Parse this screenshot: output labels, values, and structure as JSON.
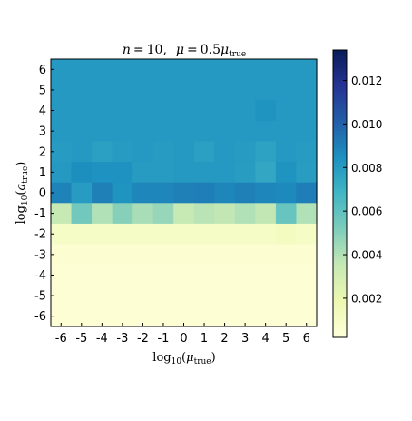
{
  "chart_data": {
    "type": "heatmap",
    "title": {
      "n_var": "n",
      "n_value": "10",
      "mu_var": "μ",
      "mu_factor": "0.5",
      "mu_sub": "true"
    },
    "xlabel": {
      "prefix": "log",
      "base": "10",
      "var": "μ",
      "sub": "true"
    },
    "ylabel": {
      "prefix": "log",
      "base": "10",
      "var": "a",
      "sub": "true"
    },
    "x_ticks": [
      "-6",
      "-5",
      "-4",
      "-3",
      "-2",
      "-1",
      "0",
      "1",
      "2",
      "3",
      "4",
      "5",
      "6"
    ],
    "y_ticks": [
      "6",
      "5",
      "4",
      "3",
      "2",
      "1",
      "0",
      "-1",
      "-2",
      "-3",
      "-4",
      "-5",
      "-6"
    ],
    "colorbar": {
      "colormap": "YlGnBu",
      "min": 0.0002,
      "max": 0.0134,
      "ticks": [
        0.002,
        0.004,
        0.006,
        0.008,
        0.01,
        0.012
      ],
      "tick_labels": [
        "0.002",
        "0.004",
        "0.006",
        "0.008",
        "0.010",
        "0.012"
      ]
    },
    "row_order": "top-to-bottom (log10 a_true = 6 down to -6)",
    "values": [
      [
        0.0081,
        0.0081,
        0.0081,
        0.0081,
        0.0081,
        0.0081,
        0.0081,
        0.0081,
        0.0081,
        0.0081,
        0.0081,
        0.0081,
        0.0081
      ],
      [
        0.0081,
        0.0081,
        0.0081,
        0.0081,
        0.0081,
        0.0081,
        0.0081,
        0.0081,
        0.0081,
        0.0081,
        0.0081,
        0.0081,
        0.0081
      ],
      [
        0.0081,
        0.0081,
        0.0081,
        0.0081,
        0.0081,
        0.0081,
        0.0081,
        0.0081,
        0.0081,
        0.0081,
        0.0083,
        0.0081,
        0.0081
      ],
      [
        0.0081,
        0.0081,
        0.0081,
        0.0081,
        0.0081,
        0.0081,
        0.0081,
        0.0081,
        0.0081,
        0.0081,
        0.0081,
        0.0081,
        0.0081
      ],
      [
        0.008,
        0.0081,
        0.0078,
        0.008,
        0.0081,
        0.008,
        0.0081,
        0.0078,
        0.0081,
        0.008,
        0.0077,
        0.0081,
        0.008
      ],
      [
        0.0081,
        0.0085,
        0.0084,
        0.0084,
        0.008,
        0.008,
        0.0081,
        0.0081,
        0.0081,
        0.0079,
        0.0075,
        0.0083,
        0.0079
      ],
      [
        0.0089,
        0.008,
        0.009,
        0.0083,
        0.0088,
        0.0088,
        0.009,
        0.0091,
        0.0088,
        0.009,
        0.0088,
        0.0087,
        0.0091
      ],
      [
        0.0035,
        0.0055,
        0.004,
        0.005,
        0.0042,
        0.0046,
        0.0035,
        0.0038,
        0.0036,
        0.004,
        0.0036,
        0.0058,
        0.004
      ],
      [
        0.001,
        0.001,
        0.001,
        0.001,
        0.001,
        0.001,
        0.001,
        0.001,
        0.001,
        0.001,
        0.001,
        0.0012,
        0.001
      ],
      [
        0.0005,
        0.0005,
        0.0005,
        0.0005,
        0.0005,
        0.0005,
        0.0005,
        0.0005,
        0.0005,
        0.0005,
        0.0005,
        0.0005,
        0.0005
      ],
      [
        0.0004,
        0.0004,
        0.0004,
        0.0004,
        0.0004,
        0.0004,
        0.0004,
        0.0004,
        0.0004,
        0.0004,
        0.0004,
        0.0004,
        0.0004
      ],
      [
        0.0004,
        0.0004,
        0.0004,
        0.0004,
        0.0004,
        0.0004,
        0.0004,
        0.0004,
        0.0004,
        0.0004,
        0.0004,
        0.0004,
        0.0004
      ],
      [
        0.0004,
        0.0004,
        0.0004,
        0.0004,
        0.0004,
        0.0004,
        0.0004,
        0.0004,
        0.0004,
        0.0004,
        0.0004,
        0.0004,
        0.0004
      ]
    ],
    "grid": false
  }
}
